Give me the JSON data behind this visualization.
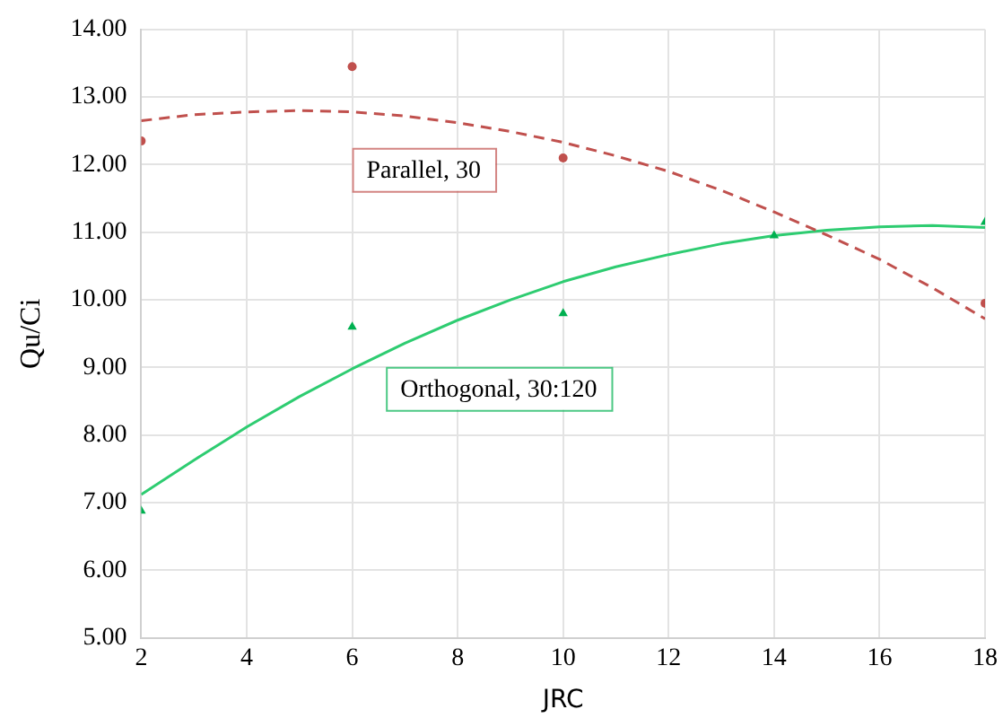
{
  "chart_data": {
    "type": "scatter",
    "xlabel": "JRC",
    "ylabel": "Qu/Ci",
    "xlim": [
      2,
      18
    ],
    "xticks": [
      2,
      4,
      6,
      8,
      10,
      12,
      14,
      16,
      18
    ],
    "ylim": [
      5,
      14
    ],
    "yticks": [
      {
        "value": 5,
        "label": "5.00"
      },
      {
        "value": 6,
        "label": "6.00"
      },
      {
        "value": 7,
        "label": "7.00"
      },
      {
        "value": 8,
        "label": "8.00"
      },
      {
        "value": 9,
        "label": "9.00"
      },
      {
        "value": 10,
        "label": "10.00"
      },
      {
        "value": 11,
        "label": "11.00"
      },
      {
        "value": 12,
        "label": "12.00"
      },
      {
        "value": 13,
        "label": "13.00"
      },
      {
        "value": 14,
        "label": "14.00"
      }
    ],
    "grid": true,
    "legend": false,
    "series": [
      {
        "type": "scatter",
        "marker": "circle",
        "color": "#c0504d",
        "x": [
          2,
          6,
          10,
          18
        ],
        "values": [
          12.35,
          13.45,
          12.1,
          9.95
        ]
      },
      {
        "type": "scatter",
        "marker": "triangle",
        "color": "#00b050",
        "x": [
          2,
          6,
          10,
          14,
          18
        ],
        "values": [
          6.88,
          9.6,
          9.8,
          10.95,
          11.15
        ]
      },
      {
        "type": "line",
        "line_style": "dashed",
        "marker": "none",
        "color": "#c0504d",
        "x": [
          2,
          3,
          4,
          5,
          6,
          7,
          8,
          9,
          10,
          11,
          12,
          13,
          14,
          15,
          16,
          17,
          18
        ],
        "values": [
          12.65,
          12.74,
          12.78,
          12.8,
          12.78,
          12.72,
          12.62,
          12.49,
          12.33,
          12.13,
          11.9,
          11.62,
          11.3,
          10.96,
          10.6,
          10.18,
          9.72
        ]
      },
      {
        "type": "line",
        "line_style": "solid",
        "marker": "none",
        "color": "#2ecc71",
        "x": [
          2,
          3,
          4,
          5,
          6,
          7,
          8,
          9,
          10,
          11,
          12,
          13,
          14,
          15,
          16,
          17,
          18
        ],
        "values": [
          7.12,
          7.63,
          8.12,
          8.57,
          8.98,
          9.36,
          9.7,
          10.0,
          10.27,
          10.49,
          10.67,
          10.83,
          10.95,
          11.03,
          11.08,
          11.1,
          11.07
        ]
      }
    ],
    "annotations": [
      "Parallel, 30",
      "Orthogonal, 30:120"
    ]
  }
}
